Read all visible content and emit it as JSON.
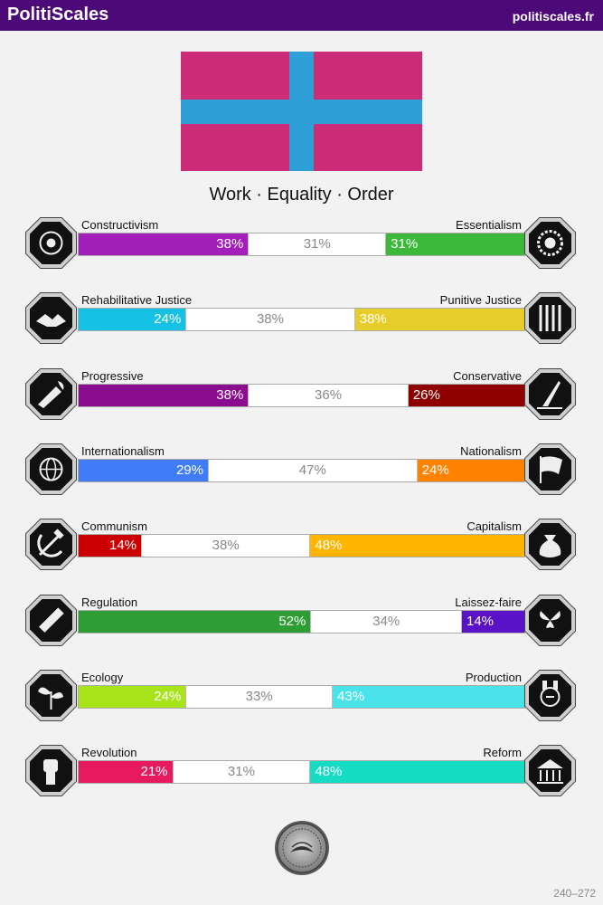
{
  "header": {
    "brand": "PolitiScales",
    "site": "politiscales.fr"
  },
  "flag": {
    "background_color": "#cc2c77",
    "cross_color": "#2f9fd8"
  },
  "ideology": "Work · Equality · Order",
  "axes": [
    {
      "left_label": "Constructivism",
      "right_label": "Essentialism",
      "left_value": 38,
      "middle_value": 31,
      "right_value": 31,
      "left_text": "38%",
      "middle_text": "31%",
      "right_text": "31%",
      "left_color": "#a21fba",
      "right_color": "#3cb93a",
      "left_icon": "sphere-icon",
      "right_icon": "flower-icon"
    },
    {
      "left_label": "Rehabilitative Justice",
      "right_label": "Punitive Justice",
      "left_value": 24,
      "middle_value": 38,
      "right_value": 38,
      "left_text": "24%",
      "middle_text": "38%",
      "right_text": "38%",
      "left_color": "#16c1e6",
      "right_color": "#e7cd2a",
      "left_icon": "handshake-icon",
      "right_icon": "prison-bars-icon"
    },
    {
      "left_label": "Progressive",
      "right_label": "Conservative",
      "left_value": 38,
      "middle_value": 36,
      "right_value": 26,
      "left_text": "38%",
      "middle_text": "36%",
      "right_text": "26%",
      "left_color": "#8a0d90",
      "right_color": "#8e0000",
      "left_icon": "torch-icon",
      "right_icon": "quill-icon"
    },
    {
      "left_label": "Internationalism",
      "right_label": "Nationalism",
      "left_value": 29,
      "middle_value": 47,
      "right_value": 24,
      "left_text": "29%",
      "middle_text": "47%",
      "right_text": "24%",
      "left_color": "#3f7cf6",
      "right_color": "#ff8300",
      "left_icon": "globe-icon",
      "right_icon": "flag-icon"
    },
    {
      "left_label": "Communism",
      "right_label": "Capitalism",
      "left_value": 14,
      "middle_value": 38,
      "right_value": 48,
      "left_text": "14%",
      "middle_text": "38%",
      "right_text": "48%",
      "left_color": "#cc0000",
      "right_color": "#ffb400",
      "left_icon": "hammer-sickle-icon",
      "right_icon": "money-bag-icon"
    },
    {
      "left_label": "Regulation",
      "right_label": "Laissez-faire",
      "left_value": 52,
      "middle_value": 34,
      "right_value": 14,
      "left_text": "52%",
      "middle_text": "34%",
      "right_text": "14%",
      "left_color": "#2d9e34",
      "right_color": "#5a12c6",
      "left_icon": "ruler-icon",
      "right_icon": "butterflies-icon"
    },
    {
      "left_label": "Ecology",
      "right_label": "Production",
      "left_value": 24,
      "middle_value": 33,
      "right_value": 43,
      "left_text": "24%",
      "middle_text": "33%",
      "right_text": "43%",
      "left_color": "#a7e41a",
      "right_color": "#4be3ea",
      "left_icon": "sprout-icon",
      "right_icon": "factory-icon"
    },
    {
      "left_label": "Revolution",
      "right_label": "Reform",
      "left_value": 21,
      "middle_value": 31,
      "right_value": 48,
      "left_text": "21%",
      "middle_text": "31%",
      "right_text": "48%",
      "left_color": "#e81a5f",
      "right_color": "#15dcc3",
      "left_icon": "raised-fist-icon",
      "right_icon": "building-icon"
    }
  ],
  "footer": {
    "code": "240–272",
    "seal_icon": "seal-icon"
  }
}
